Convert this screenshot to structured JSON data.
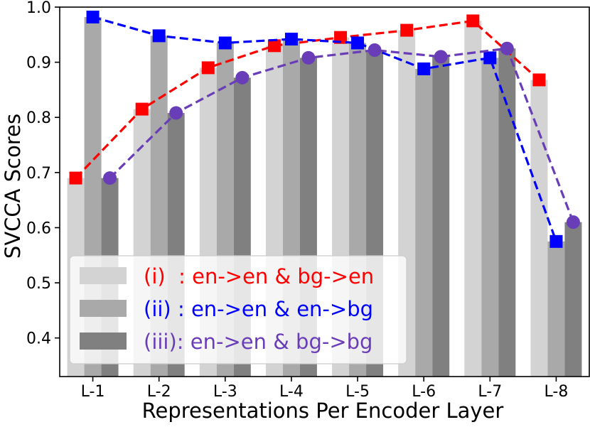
{
  "chart_data": {
    "type": "bar",
    "title": "",
    "xlabel": "Representations Per Encoder Layer",
    "ylabel": "SVCCA Scores",
    "ylim": [
      0.33,
      1.0
    ],
    "yticks": [
      "0.4",
      "0.5",
      "0.6",
      "0.7",
      "0.8",
      "0.9",
      "1.0"
    ],
    "categories": [
      "L-1",
      "L-2",
      "L-3",
      "L-4",
      "L-5",
      "L-6",
      "L-7",
      "L-8"
    ],
    "grid": false,
    "legend_position": "lower-left",
    "series": [
      {
        "name": "(i)  : en->en & bg->en",
        "bar_color": "#d3d3d3",
        "line_color": "#ff0000",
        "marker": "square",
        "values": [
          0.69,
          0.815,
          0.89,
          0.93,
          0.945,
          0.958,
          0.975,
          0.868
        ]
      },
      {
        "name": "(ii) : en->en & en->bg",
        "bar_color": "#a9a9a9",
        "line_color": "#0000ff",
        "marker": "square",
        "values": [
          0.982,
          0.948,
          0.935,
          0.942,
          0.935,
          0.888,
          0.908,
          0.575
        ]
      },
      {
        "name": "(iii): en->en & bg->bg",
        "bar_color": "#808080",
        "line_color": "#6a3db8",
        "marker": "circle",
        "values": [
          0.69,
          0.808,
          0.872,
          0.908,
          0.922,
          0.91,
          0.925,
          0.61
        ]
      }
    ]
  }
}
